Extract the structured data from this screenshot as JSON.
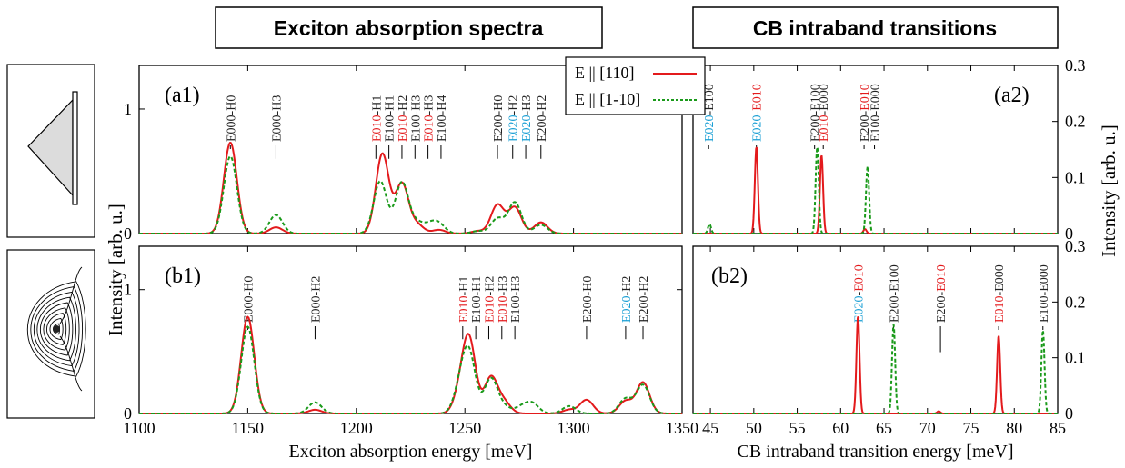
{
  "headings": {
    "left": "Exciton absorption spectra",
    "right": "CB intraband transitions"
  },
  "colors": {
    "e110": "#e31a1c",
    "e1m10": "#1a9a1a",
    "label_red": "#e31a1c",
    "label_blue": "#1a9fd4",
    "label_black": "#222222"
  },
  "legend": {
    "items": [
      "E || [110]",
      "E || [1-10]"
    ]
  },
  "icons": [
    "triangle-quantum-dot-icon",
    "contour-potential-icon"
  ],
  "shared_labels": {
    "ylabel_left": "Intensity [arb. u.]",
    "ylabel_right": "Intensity [arb. u.]"
  },
  "chart_data": [
    {
      "id": "a1",
      "type": "line",
      "panel_label": "(a1)",
      "xlabel": "",
      "ylabel": "Intensity [arb. u.]",
      "xlim": [
        1100,
        1350
      ],
      "ylim": [
        0,
        1.35
      ],
      "yticks": [
        "0",
        "1"
      ],
      "xticks": [],
      "width": 3.0,
      "series": [
        {
          "name": "E || [110]",
          "color": "#e31a1c",
          "dashed": false,
          "peaks": [
            [
              1142,
              0.73
            ],
            [
              1163,
              0.05
            ],
            [
              1212,
              0.64
            ],
            [
              1221,
              0.4
            ],
            [
              1228,
              0.07
            ],
            [
              1238,
              0.03
            ],
            [
              1256,
              0.02
            ],
            [
              1265,
              0.23
            ],
            [
              1273,
              0.21
            ],
            [
              1285,
              0.09
            ]
          ]
        },
        {
          "name": "E || [1-10]",
          "color": "#1a9a1a",
          "dashed": true,
          "peaks": [
            [
              1142,
              0.62
            ],
            [
              1163,
              0.15
            ],
            [
              1211,
              0.42
            ],
            [
              1221,
              0.41
            ],
            [
              1228,
              0.08
            ],
            [
              1234,
              0.06
            ],
            [
              1238,
              0.07
            ],
            [
              1256,
              0.02
            ],
            [
              1265,
              0.12
            ],
            [
              1273,
              0.25
            ],
            [
              1285,
              0.07
            ]
          ]
        }
      ],
      "annotations": [
        {
          "x": 1142,
          "y": 0.82,
          "parts": [
            [
              "E000",
              "black"
            ],
            [
              "-H0",
              "black"
            ]
          ]
        },
        {
          "x": 1163,
          "y": 0.6,
          "parts": [
            [
              "E000",
              "black"
            ],
            [
              "-H3",
              "black"
            ]
          ]
        },
        {
          "x": 1209,
          "y": 0.6,
          "parts": [
            [
              "E010",
              "red"
            ],
            [
              "-H1",
              "black"
            ]
          ]
        },
        {
          "x": 1215,
          "y": 0.6,
          "parts": [
            [
              "E100",
              "black"
            ],
            [
              "-H1",
              "black"
            ]
          ]
        },
        {
          "x": 1221,
          "y": 0.6,
          "parts": [
            [
              "E010",
              "red"
            ],
            [
              "-H2",
              "black"
            ]
          ]
        },
        {
          "x": 1227,
          "y": 0.6,
          "parts": [
            [
              "E100",
              "black"
            ],
            [
              "-H3",
              "black"
            ]
          ]
        },
        {
          "x": 1233,
          "y": 0.6,
          "parts": [
            [
              "E010",
              "red"
            ],
            [
              "-H3",
              "black"
            ]
          ]
        },
        {
          "x": 1239,
          "y": 0.6,
          "parts": [
            [
              "E100",
              "black"
            ],
            [
              "-H4",
              "black"
            ]
          ]
        },
        {
          "x": 1265,
          "y": 0.6,
          "parts": [
            [
              "E200",
              "black"
            ],
            [
              "-H0",
              "black"
            ]
          ]
        },
        {
          "x": 1272,
          "y": 0.6,
          "parts": [
            [
              "E020",
              "blue"
            ],
            [
              "-H2",
              "black"
            ]
          ]
        },
        {
          "x": 1278,
          "y": 0.6,
          "parts": [
            [
              "E020",
              "blue"
            ],
            [
              "-H3",
              "black"
            ]
          ]
        },
        {
          "x": 1285,
          "y": 0.6,
          "parts": [
            [
              "E200",
              "black"
            ],
            [
              "-H2",
              "black"
            ]
          ]
        }
      ]
    },
    {
      "id": "b1",
      "type": "line",
      "panel_label": "(b1)",
      "xlabel": "Exciton absorption energy [meV]",
      "ylabel": "Intensity [arb. u.]",
      "xlim": [
        1100,
        1350
      ],
      "ylim": [
        0,
        1.35
      ],
      "yticks": [
        "0",
        "1"
      ],
      "xticks": [
        "1100",
        "1150",
        "1200",
        "1250",
        "1300",
        "1350"
      ],
      "width": 3.0,
      "series": [
        {
          "name": "E || [110]",
          "color": "#e31a1c",
          "dashed": false,
          "peaks": [
            [
              1150,
              0.78
            ],
            [
              1181,
              0.03
            ],
            [
              1248,
              0.16
            ],
            [
              1252,
              0.57
            ],
            [
              1262,
              0.29
            ],
            [
              1268,
              0.09
            ],
            [
              1298,
              0.03
            ],
            [
              1306,
              0.11
            ],
            [
              1324,
              0.1
            ],
            [
              1332,
              0.25
            ]
          ]
        },
        {
          "name": "E || [1-10]",
          "color": "#1a9a1a",
          "dashed": true,
          "peaks": [
            [
              1150,
              0.7
            ],
            [
              1181,
              0.09
            ],
            [
              1248,
              0.2
            ],
            [
              1252,
              0.45
            ],
            [
              1262,
              0.28
            ],
            [
              1268,
              0.05
            ],
            [
              1276,
              0.05
            ],
            [
              1281,
              0.08
            ],
            [
              1298,
              0.06
            ],
            [
              1324,
              0.12
            ],
            [
              1332,
              0.23
            ]
          ]
        }
      ],
      "annotations": [
        {
          "x": 1150,
          "y": 0.82,
          "parts": [
            [
              "E000",
              "black"
            ],
            [
              "-H0",
              "black"
            ]
          ]
        },
        {
          "x": 1181,
          "y": 0.6,
          "parts": [
            [
              "E000",
              "black"
            ],
            [
              "-H2",
              "black"
            ]
          ]
        },
        {
          "x": 1249,
          "y": 0.6,
          "parts": [
            [
              "E010",
              "red"
            ],
            [
              "-H1",
              "black"
            ]
          ]
        },
        {
          "x": 1255,
          "y": 0.6,
          "parts": [
            [
              "E100",
              "black"
            ],
            [
              "-H1",
              "black"
            ]
          ]
        },
        {
          "x": 1261,
          "y": 0.6,
          "parts": [
            [
              "E010",
              "red"
            ],
            [
              "-H2",
              "black"
            ]
          ]
        },
        {
          "x": 1267,
          "y": 0.6,
          "parts": [
            [
              "E010",
              "red"
            ],
            [
              "-H3",
              "black"
            ]
          ]
        },
        {
          "x": 1273,
          "y": 0.6,
          "parts": [
            [
              "E100",
              "black"
            ],
            [
              "-H3",
              "black"
            ]
          ]
        },
        {
          "x": 1306,
          "y": 0.6,
          "parts": [
            [
              "E200",
              "black"
            ],
            [
              "-H0",
              "black"
            ]
          ]
        },
        {
          "x": 1324,
          "y": 0.6,
          "parts": [
            [
              "E020",
              "blue"
            ],
            [
              "-H2",
              "black"
            ]
          ]
        },
        {
          "x": 1332,
          "y": 0.6,
          "parts": [
            [
              "E200",
              "black"
            ],
            [
              "-H2",
              "black"
            ]
          ]
        }
      ]
    },
    {
      "id": "a2",
      "type": "line",
      "panel_label": "(a2)",
      "xlabel": "",
      "ylabel": "Intensity [arb. u.]",
      "xlim": [
        43,
        85
      ],
      "ylim": [
        0,
        0.3
      ],
      "yticks": [
        "0",
        "0.1",
        "0.2",
        "0.3"
      ],
      "xticks": [],
      "width": 0.18,
      "series": [
        {
          "name": "E || [110]",
          "color": "#e31a1c",
          "dashed": false,
          "peaks": [
            [
              50.3,
              0.155
            ],
            [
              57.8,
              0.14
            ],
            [
              62.8,
              0.008
            ]
          ]
        },
        {
          "name": "E || [1-10]",
          "color": "#1a9a1a",
          "dashed": true,
          "peaks": [
            [
              44.9,
              0.017
            ],
            [
              57.3,
              0.155
            ],
            [
              63.1,
              0.12
            ]
          ]
        }
      ],
      "annotations": [
        {
          "x": 44.8,
          "y": 0.158,
          "parts": [
            [
              "E020",
              "blue"
            ],
            [
              "-E100",
              "black"
            ]
          ]
        },
        {
          "x": 50.3,
          "y": 0.22,
          "parts": [
            [
              "E020",
              "blue"
            ],
            [
              "-",
              "black"
            ],
            [
              "E010",
              "red"
            ]
          ]
        },
        {
          "x": 57.0,
          "y": 0.22,
          "parts": [
            [
              "E200",
              "black"
            ],
            [
              "-E100",
              "black"
            ]
          ]
        },
        {
          "x": 58.0,
          "y": 0.22,
          "parts": [
            [
              "E010",
              "red"
            ],
            [
              "-E000",
              "black"
            ]
          ]
        },
        {
          "x": 62.7,
          "y": 0.22,
          "parts": [
            [
              "E200",
              "black"
            ],
            [
              "-",
              "black"
            ],
            [
              "E010",
              "red"
            ]
          ]
        },
        {
          "x": 63.9,
          "y": 0.22,
          "parts": [
            [
              "E100",
              "black"
            ],
            [
              "-E000",
              "black"
            ]
          ]
        }
      ]
    },
    {
      "id": "b2",
      "type": "line",
      "panel_label": "(b2)",
      "xlabel": "CB intraband transition energy [meV]",
      "ylabel": "Intensity [arb. u.]",
      "xlim": [
        43,
        85
      ],
      "ylim": [
        0,
        0.3
      ],
      "yticks": [
        "0",
        "0.1",
        "0.2",
        "0.3"
      ],
      "xticks": [
        "45",
        "50",
        "55",
        "60",
        "65",
        "70",
        "75",
        "80",
        "85"
      ],
      "width": 0.18,
      "series": [
        {
          "name": "E || [110]",
          "color": "#e31a1c",
          "dashed": false,
          "peaks": [
            [
              62.0,
              0.175
            ],
            [
              71.3,
              0.004
            ],
            [
              78.2,
              0.14
            ]
          ]
        },
        {
          "name": "E || [1-10]",
          "color": "#1a9a1a",
          "dashed": true,
          "peaks": [
            [
              66.1,
              0.16
            ],
            [
              83.3,
              0.15
            ]
          ]
        }
      ],
      "annotations": [
        {
          "x": 62.0,
          "y": 0.18,
          "parts": [
            [
              "E020",
              "blue"
            ],
            [
              "-",
              "black"
            ],
            [
              "E010",
              "red"
            ]
          ]
        },
        {
          "x": 66.1,
          "y": 0.17,
          "parts": [
            [
              "E200",
              "black"
            ],
            [
              "-E100",
              "black"
            ]
          ]
        },
        {
          "x": 71.5,
          "y": 0.11,
          "parts": [
            [
              "E200",
              "black"
            ],
            [
              "-",
              "black"
            ],
            [
              "E010",
              "red"
            ]
          ]
        },
        {
          "x": 78.2,
          "y": 0.15,
          "parts": [
            [
              "E010",
              "red"
            ],
            [
              "-E000",
              "black"
            ]
          ]
        },
        {
          "x": 83.3,
          "y": 0.16,
          "parts": [
            [
              "E100",
              "black"
            ],
            [
              "-E000",
              "black"
            ]
          ]
        }
      ]
    }
  ]
}
